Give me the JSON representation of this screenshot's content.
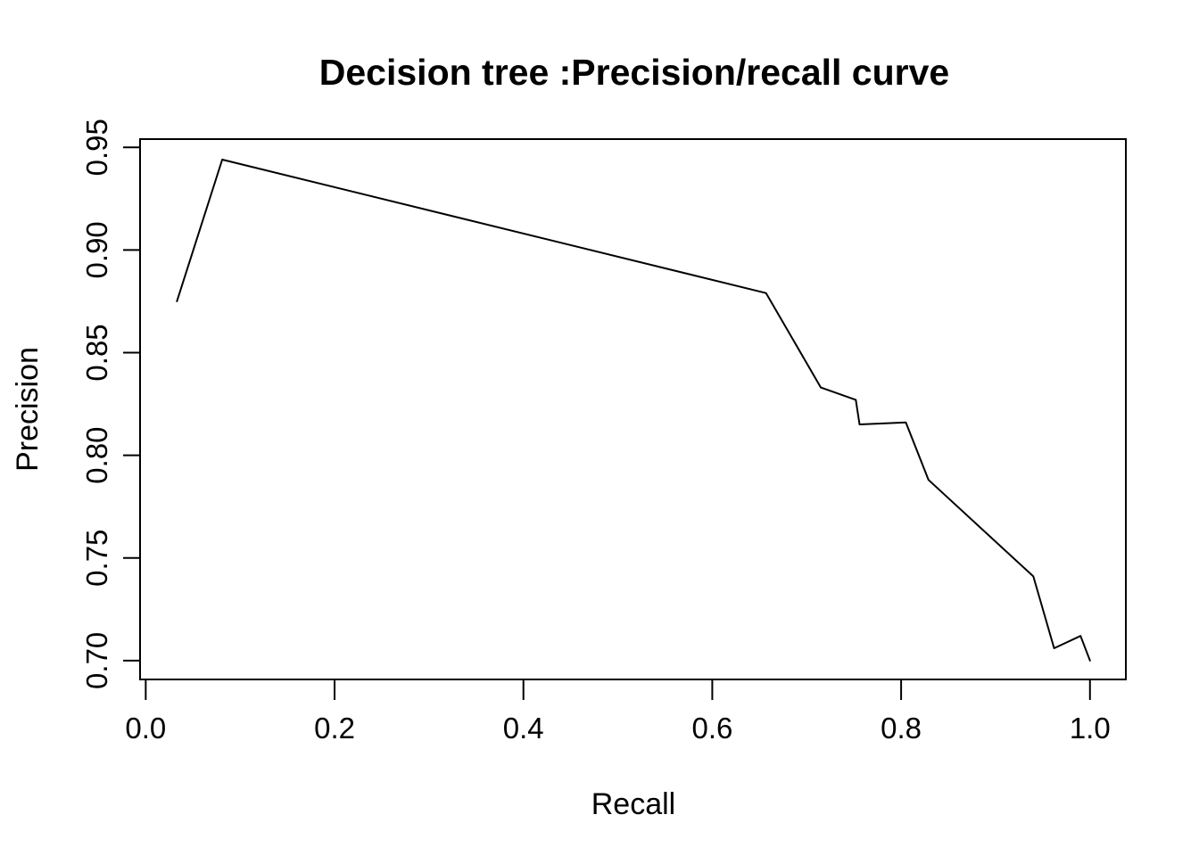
{
  "chart_data": {
    "type": "line",
    "title": "Decision tree :Precision/recall curve",
    "xlabel": "Recall",
    "ylabel": "Precision",
    "x_ticks": [
      0.0,
      0.2,
      0.4,
      0.6,
      0.8,
      1.0
    ],
    "x_tick_labels": [
      "0.0",
      "0.2",
      "0.4",
      "0.6",
      "0.8",
      "1.0"
    ],
    "y_ticks": [
      0.7,
      0.75,
      0.8,
      0.85,
      0.9,
      0.95
    ],
    "y_tick_labels": [
      "0.70",
      "0.75",
      "0.80",
      "0.85",
      "0.90",
      "0.95"
    ],
    "xlim": [
      -0.006,
      1.038
    ],
    "ylim": [
      0.6908,
      0.954
    ],
    "grid": false,
    "legend": null,
    "background_color": "#ffffff",
    "line_color": "#000000",
    "series": [
      {
        "name": "decision-tree-precision-recall",
        "points": [
          [
            0.033,
            0.875
          ],
          [
            0.081,
            0.944
          ],
          [
            0.657,
            0.879
          ],
          [
            0.715,
            0.833
          ],
          [
            0.752,
            0.827
          ],
          [
            0.756,
            0.815
          ],
          [
            0.805,
            0.816
          ],
          [
            0.829,
            0.788
          ],
          [
            0.94,
            0.741
          ],
          [
            0.962,
            0.706
          ],
          [
            0.99,
            0.712
          ],
          [
            1.0,
            0.7
          ]
        ]
      }
    ]
  }
}
